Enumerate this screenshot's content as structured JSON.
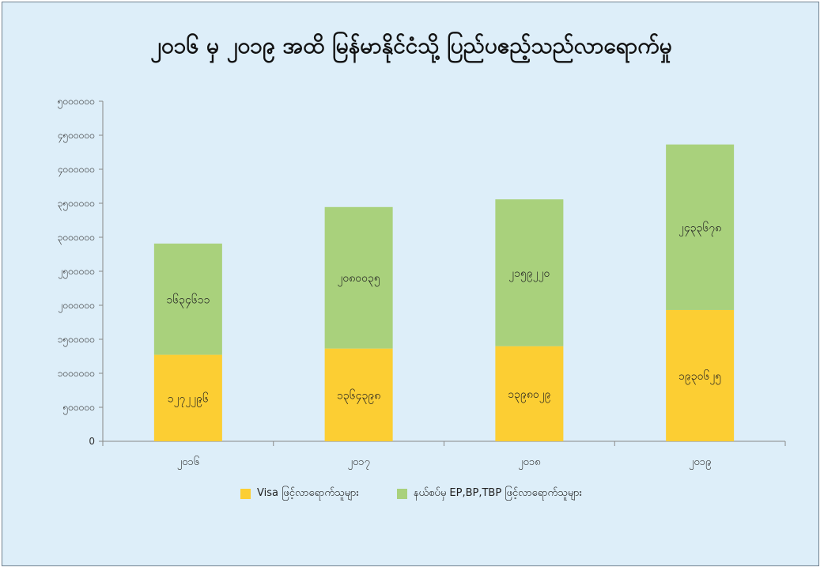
{
  "title": "၂၀၁၆ မှ ၂၀၁၉ အထိ မြန်မာနိုင်ငံသို့ ပြည်ပဧည့်သည်လာရောက်မှု",
  "colors": {
    "visa": "#fcce33",
    "ep": "#a9d17c"
  },
  "chart_data": {
    "type": "bar",
    "stacked": true,
    "categories": [
      "၂၀၁၆",
      "၂၀၁၇",
      "၂၀၁၈",
      "၂၀၁၉"
    ],
    "series": [
      {
        "name": "Visa ဖြင့်လာရောက်သူများ",
        "values": [
          1272296,
          1364398,
          1398029,
          1930625
        ],
        "labels": [
          "၁၂၇၂၂၉၆",
          "၁၃၆၄၃၉၈",
          "၁၃၉၈၀၂၉",
          "၁၉၃၀၆၂၅"
        ]
      },
      {
        "name": "နယ်စပ်မှ EP,BP,TBP ဖြင့်လာရောက်သူများ",
        "values": [
          1634611,
          2080035,
          2159220,
          2433678
        ],
        "labels": [
          "၁၆၃၄၆၁၁",
          "၂၀၈၀၀၃၅",
          "၂၁၅၉၂၂၀",
          "၂၄၃၃၆၇၈"
        ]
      }
    ],
    "ylim": [
      0,
      5000000
    ],
    "yticks": [
      0,
      500000,
      1000000,
      1500000,
      2000000,
      2500000,
      3000000,
      3500000,
      4000000,
      4500000,
      5000000
    ],
    "ytick_labels": [
      "0",
      "၅၀၀၀၀၀",
      "၁၀၀၀၀၀၀",
      "၁၅၀၀၀၀၀",
      "၂၀၀၀၀၀၀",
      "၂၅၀၀၀၀၀",
      "၃၀၀၀၀၀၀",
      "၃၅၀၀၀၀၀",
      "၄၀၀၀၀၀၀",
      "၄၅၀၀၀၀၀",
      "၅၀၀၀၀၀၀"
    ],
    "grid": false,
    "legend": "bottom"
  }
}
